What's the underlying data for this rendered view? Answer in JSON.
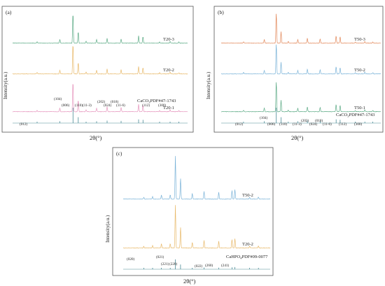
{
  "colors": {
    "green": "#5dab86",
    "orange": "#e8b96a",
    "pink": "#e695bd",
    "red": "#e2885a",
    "blue": "#7ab3d8",
    "ref": "#4a8a96"
  },
  "chart_data": [
    {
      "type": "line",
      "panel_label": "(a)",
      "xlabel": "2θ(°)",
      "ylabel": "Intensity(a.u.)",
      "series": [
        {
          "name": "T20-3",
          "color_key": "green"
        },
        {
          "name": "T20-2",
          "color_key": "orange"
        },
        {
          "name": "T20-1",
          "color_key": "pink"
        }
      ],
      "reference": {
        "label": "CaCO3PDF#47-1743",
        "label_main": "CaCO",
        "label_sub": "3",
        "label_rest": "PDF#47-1743",
        "hkl": [
          "(012)",
          "(104)",
          "(006)",
          "(110)",
          "(11-3)",
          "(202)",
          "(024)",
          "(018)",
          "(11-6)",
          "(112)",
          "(300)"
        ]
      },
      "peaks": [
        {
          "x": 0.14,
          "h": 0.05
        },
        {
          "x": 0.27,
          "h": 0.12
        },
        {
          "x": 0.345,
          "h": 1.0
        },
        {
          "x": 0.375,
          "h": 0.38
        },
        {
          "x": 0.42,
          "h": 0.06
        },
        {
          "x": 0.48,
          "h": 0.12
        },
        {
          "x": 0.54,
          "h": 0.16
        },
        {
          "x": 0.62,
          "h": 0.14
        },
        {
          "x": 0.72,
          "h": 0.24
        },
        {
          "x": 0.745,
          "h": 0.21
        },
        {
          "x": 0.84,
          "h": 0.04
        },
        {
          "x": 0.9,
          "h": 0.06
        },
        {
          "x": 0.95,
          "h": 0.04
        }
      ]
    },
    {
      "type": "line",
      "panel_label": "(b)",
      "xlabel": "2θ(°)",
      "ylabel": "Intensity(a.u.)",
      "series": [
        {
          "name": "T50-3",
          "color_key": "red"
        },
        {
          "name": "T50-2",
          "color_key": "blue"
        },
        {
          "name": "T50-1",
          "color_key": "green"
        }
      ],
      "reference": {
        "label": "CaCO3PDF#47-1743",
        "label_main": "CaCO",
        "label_sub": "3",
        "label_rest": "PDF#47-1743",
        "hkl": [
          "(012)",
          "(104)",
          "(006)",
          "(110)",
          "(11-3)",
          "(202)",
          "(024)",
          "(018)",
          "(11-6)",
          "(112)",
          "(300)"
        ]
      },
      "peaks": [
        {
          "x": 0.14,
          "h": 0.05
        },
        {
          "x": 0.27,
          "h": 0.12
        },
        {
          "x": 0.345,
          "h": 1.0
        },
        {
          "x": 0.375,
          "h": 0.38
        },
        {
          "x": 0.42,
          "h": 0.06
        },
        {
          "x": 0.48,
          "h": 0.12
        },
        {
          "x": 0.54,
          "h": 0.16
        },
        {
          "x": 0.62,
          "h": 0.14
        },
        {
          "x": 0.72,
          "h": 0.24
        },
        {
          "x": 0.745,
          "h": 0.21
        },
        {
          "x": 0.84,
          "h": 0.04
        },
        {
          "x": 0.9,
          "h": 0.06
        },
        {
          "x": 0.95,
          "h": 0.04
        }
      ]
    },
    {
      "type": "line",
      "panel_label": "(c)",
      "xlabel": "2θ(°)",
      "ylabel": "Intensity(a.u.)",
      "series": [
        {
          "name": "T50-2",
          "color_key": "blue"
        },
        {
          "name": "T20-2",
          "color_key": "orange"
        }
      ],
      "reference": {
        "label": "CaHPO4PDF#09-0077",
        "label_main": "CaHPO",
        "label_sub": "4",
        "label_rest": "PDF#09-0077",
        "hkl": [
          "(020)",
          "(021)",
          "(221)",
          "(220)",
          "(022)",
          "(260)",
          "(241)"
        ]
      },
      "peaks": [
        {
          "x": 0.14,
          "h": 0.04
        },
        {
          "x": 0.2,
          "h": 0.06
        },
        {
          "x": 0.26,
          "h": 0.1
        },
        {
          "x": 0.32,
          "h": 0.1
        },
        {
          "x": 0.355,
          "h": 1.0
        },
        {
          "x": 0.39,
          "h": 0.48
        },
        {
          "x": 0.47,
          "h": 0.13
        },
        {
          "x": 0.55,
          "h": 0.18
        },
        {
          "x": 0.65,
          "h": 0.16
        },
        {
          "x": 0.74,
          "h": 0.2
        },
        {
          "x": 0.76,
          "h": 0.22
        },
        {
          "x": 0.86,
          "h": 0.04
        },
        {
          "x": 0.92,
          "h": 0.05
        }
      ]
    }
  ]
}
